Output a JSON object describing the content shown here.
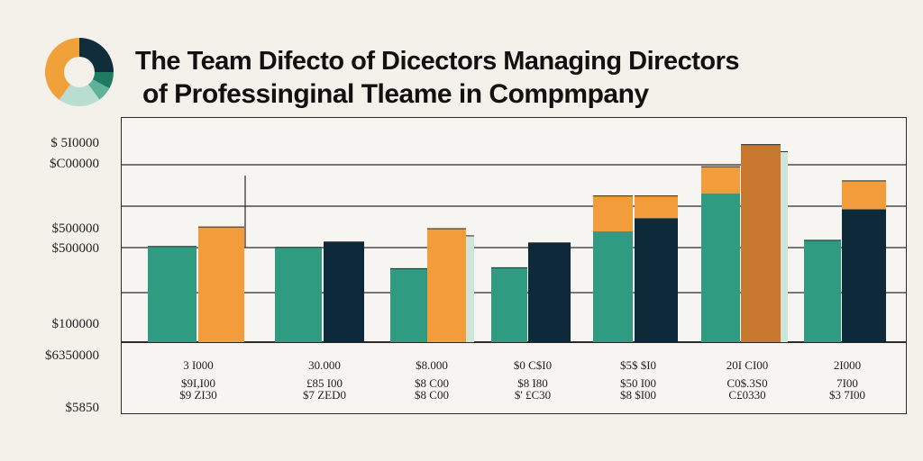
{
  "title": {
    "line1": "The Team Difecto of Dicectors Managing Directors",
    "line2": "of Professinginal Tleame in Compmpany"
  },
  "donut": {
    "segments": [
      {
        "value": 25,
        "color": "#0f2d3a"
      },
      {
        "value": 8,
        "color": "#1f7a62"
      },
      {
        "value": 7,
        "color": "#5fb39a"
      },
      {
        "value": 20,
        "color": "#b9ddd0"
      },
      {
        "value": 40,
        "color": "#f0a13a"
      }
    ]
  },
  "colors": {
    "teal": "#2f9c82",
    "orange": "#f39c3b",
    "dark_orange": "#c8782e",
    "navy": "#0e2a3a",
    "light_teal": "#cfe5da"
  },
  "chart_data": {
    "type": "bar",
    "title": "The Team Difecto of Dicectors Managing Directors of Professinginal Tleame in Compmpany",
    "ytick_labels": [
      "$ 5I0000",
      "$C00000",
      "$500000",
      "$500000",
      "$100000",
      "$6350000",
      "$5850"
    ],
    "category_labels": [
      [
        "3 I000",
        "$9I,I00",
        "$9 ZI30"
      ],
      [
        "30.000",
        "£85 I00",
        "$7 ZED0"
      ],
      [
        "$8.000",
        "$8 C00",
        "$8 C00"
      ],
      [
        "$0 C$I0",
        "$8 I80",
        "$' £C30"
      ],
      [
        "$5$ $I0",
        "$50 I00",
        "$8 $I00"
      ],
      [
        "20I CI00",
        "C0$.3S0",
        "C£0330"
      ],
      [
        "2I000",
        "7I00",
        "$3 7I00"
      ]
    ],
    "groups": [
      {
        "bars": [
          {
            "value": 108,
            "color": "teal"
          },
          {
            "value": 130,
            "color": "orange"
          }
        ]
      },
      {
        "bars": [
          {
            "value": 107,
            "color": "teal"
          },
          {
            "value": 113,
            "color": "navy"
          }
        ]
      },
      {
        "bars": [
          {
            "value": 83,
            "color": "teal"
          },
          {
            "value": 128,
            "color": "orange"
          },
          {
            "value": 120,
            "color": "light_teal"
          }
        ]
      },
      {
        "bars": [
          {
            "value": 84,
            "color": "teal"
          },
          {
            "value": 112,
            "color": "navy"
          }
        ]
      },
      {
        "bars": [
          {
            "value": 125,
            "color": "teal",
            "top": 165,
            "top_color": "orange"
          },
          {
            "value": 140,
            "color": "navy",
            "top": 165,
            "top_color": "orange"
          }
        ]
      },
      {
        "bars": [
          {
            "value": 168,
            "color": "teal",
            "top": 198,
            "top_color": "orange"
          },
          {
            "value": 223,
            "color": "dark_orange"
          },
          {
            "value": 215,
            "color": "light_teal"
          }
        ]
      },
      {
        "bars": [
          {
            "value": 115,
            "color": "teal"
          },
          {
            "value": 150,
            "color": "navy",
            "top": 182,
            "top_color": "orange"
          }
        ]
      }
    ]
  }
}
